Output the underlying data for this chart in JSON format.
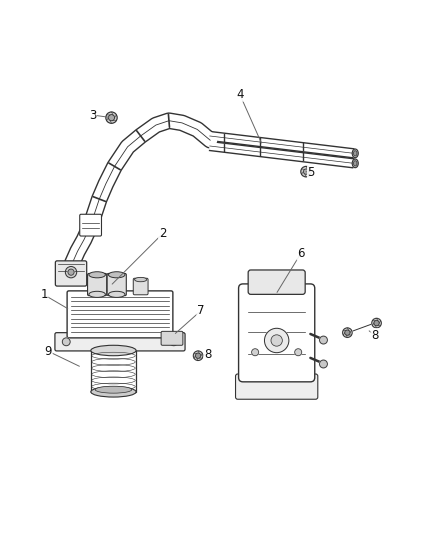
{
  "background_color": "#ffffff",
  "figsize": [
    4.38,
    5.33
  ],
  "dpi": 100,
  "line_color": "#333333",
  "text_color": "#111111",
  "leader_color": "#666666"
}
